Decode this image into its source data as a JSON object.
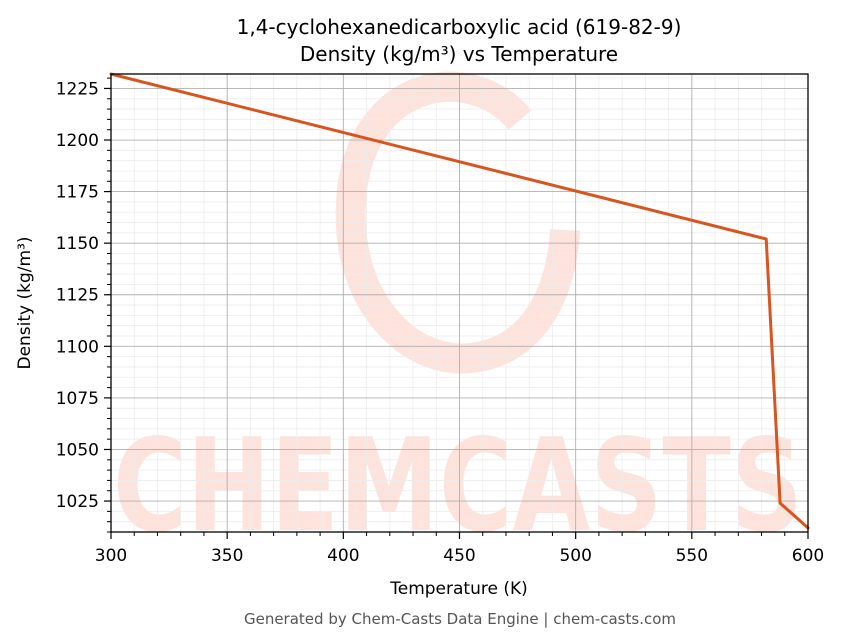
{
  "chart_data": {
    "type": "line",
    "title": "1,4-cyclohexanedicarboxylic acid (619-82-9)",
    "subtitle": "Density (kg/m³) vs Temperature",
    "xlabel": "Temperature (K)",
    "ylabel": "Density (kg/m³)",
    "xlim": [
      300,
      600
    ],
    "ylim": [
      1010,
      1232
    ],
    "x_ticks": [
      300,
      350,
      400,
      450,
      500,
      550,
      600
    ],
    "y_ticks": [
      1025,
      1050,
      1075,
      1100,
      1125,
      1150,
      1175,
      1200,
      1225
    ],
    "grid": true,
    "minor_grid": true,
    "series": [
      {
        "color": "#d9541e",
        "x": [
          300,
          582,
          588,
          600
        ],
        "y": [
          1232,
          1152,
          1024,
          1012
        ]
      }
    ]
  },
  "watermark": {
    "text": "CHEMCASTS",
    "color": "#fde3dc"
  },
  "footer": "Generated by Chem-Casts Data Engine | chem-casts.com"
}
